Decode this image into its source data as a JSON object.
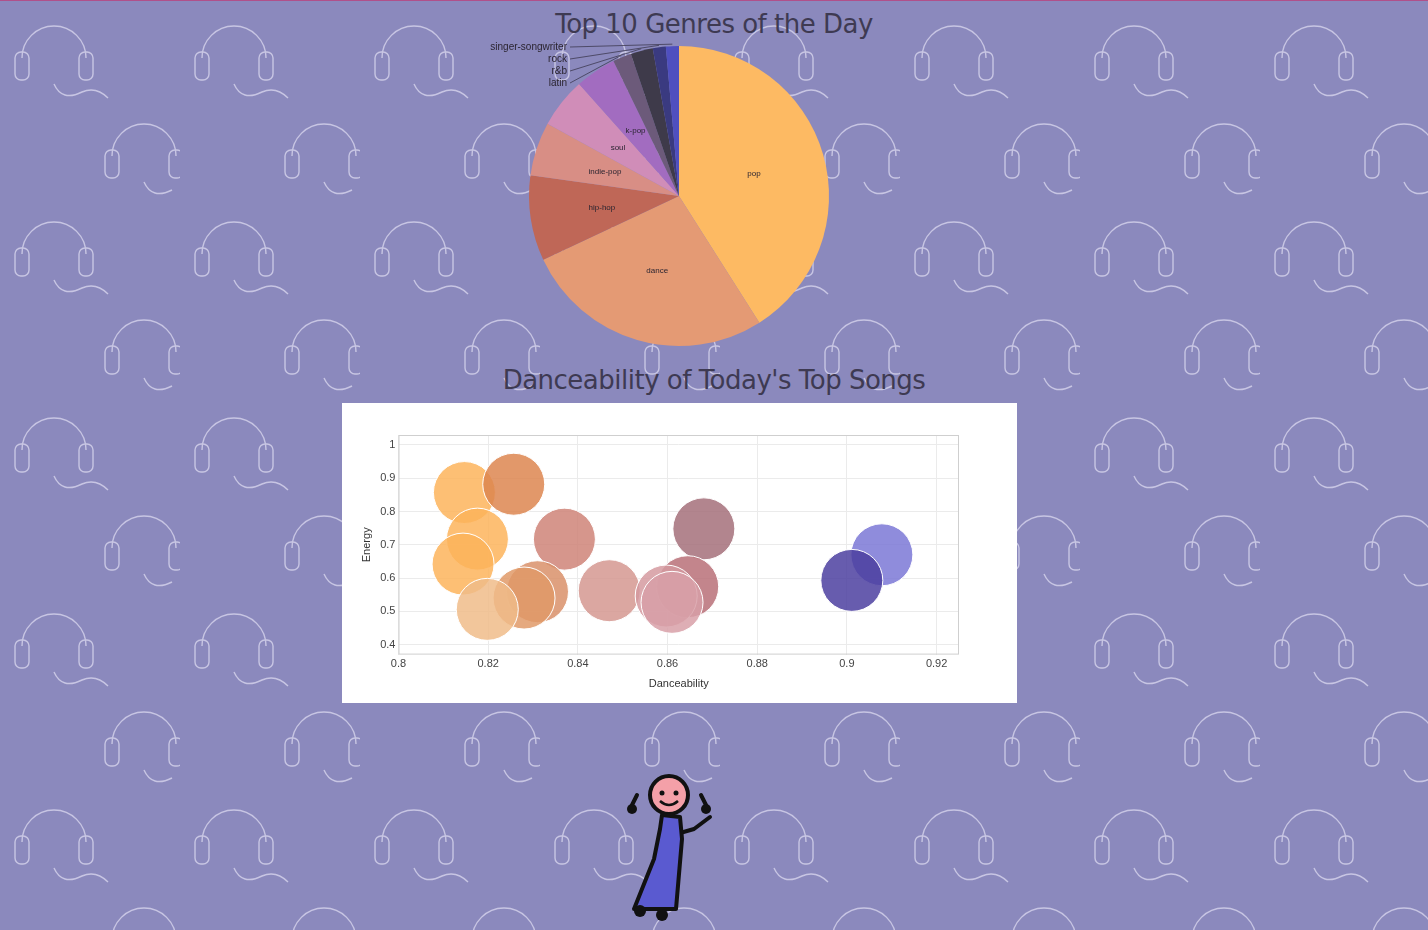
{
  "chart_data": [
    {
      "type": "pie",
      "title": "Top 10 Genres of the Day",
      "categories": [
        "pop",
        "dance",
        "hip-hop",
        "indie-pop",
        "soul",
        "k-pop",
        "latin",
        "r&b",
        "rock",
        "singer-songwriter"
      ],
      "values": [
        41,
        27,
        9.2,
        5.8,
        5.4,
        4.4,
        2,
        2.4,
        1.4,
        1.4
      ],
      "colors": [
        "#fdba63",
        "#e49a74",
        "#bf6757",
        "#d88e85",
        "#d08db8",
        "#a26cc0",
        "#6c5a7a",
        "#3e3a4a",
        "#3a3a80",
        "#4f4fbf"
      ]
    },
    {
      "type": "scatter",
      "title": "Danceability of Today's Top Songs",
      "xlabel": "Danceability",
      "ylabel": "Energy",
      "x": [
        0.8147,
        0.8257,
        0.8176,
        0.8144,
        0.837,
        0.8681,
        0.831,
        0.828,
        0.8198,
        0.847,
        0.8645,
        0.8597,
        0.861,
        0.9078,
        0.9011
      ],
      "y": [
        0.857,
        0.882,
        0.717,
        0.642,
        0.717,
        0.748,
        0.559,
        0.54,
        0.506,
        0.562,
        0.574,
        0.546,
        0.527,
        0.67,
        0.593
      ],
      "colors": [
        "#fdb45c",
        "#dd8650",
        "#fdb45c",
        "#fdb45c",
        "#cf8478",
        "#a4707a",
        "#d9916a",
        "#e09a68",
        "#f0bc8a",
        "#d59890",
        "#b87078",
        "#d59aa0",
        "#d8a0a8",
        "#7b78d6",
        "#4c3fa0"
      ],
      "marker": "circle",
      "xlim": [
        0.8,
        0.925
      ],
      "ylim": [
        0.37,
        1.03
      ],
      "xticks": [
        0.8,
        0.82,
        0.84,
        0.86,
        0.88,
        0.9,
        0.92
      ],
      "yticks": [
        0.4,
        0.5,
        0.6,
        0.7,
        0.8,
        0.9,
        1
      ],
      "grid": true
    }
  ]
}
